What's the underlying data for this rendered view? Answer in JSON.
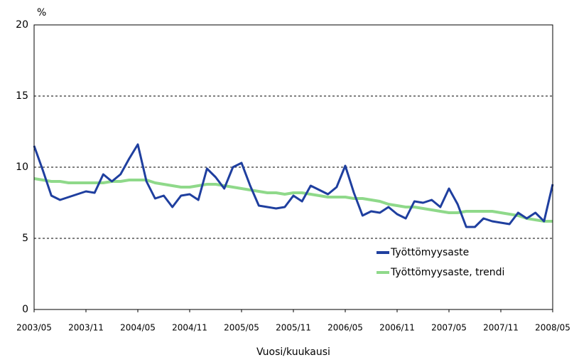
{
  "chart_data": {
    "type": "line",
    "y_unit": "%",
    "x_label": "Vuosi/kuukausi",
    "categories": [
      "2003/05",
      null,
      null,
      null,
      null,
      null,
      "2003/11",
      null,
      null,
      null,
      null,
      null,
      "2004/05",
      null,
      null,
      null,
      null,
      null,
      "2004/11",
      null,
      null,
      null,
      null,
      null,
      "2005/05",
      null,
      null,
      null,
      null,
      null,
      "2005/11",
      null,
      null,
      null,
      null,
      null,
      "2006/05",
      null,
      null,
      null,
      null,
      null,
      "2006/11",
      null,
      null,
      null,
      null,
      null,
      "2007/05",
      null,
      null,
      null,
      null,
      null,
      "2007/11",
      null,
      null,
      null,
      null,
      null,
      "2008/05"
    ],
    "series": [
      {
        "name": "Työttömyysaste",
        "color": "#1f3f9f",
        "values": [
          11.5,
          9.8,
          8.0,
          7.7,
          7.9,
          8.1,
          8.3,
          8.2,
          9.5,
          9.0,
          9.5,
          10.6,
          11.6,
          9.0,
          7.8,
          8.0,
          7.2,
          8.0,
          8.1,
          7.7,
          9.9,
          9.3,
          8.5,
          10.0,
          10.3,
          8.7,
          7.3,
          7.2,
          7.1,
          7.2,
          8.0,
          7.6,
          8.7,
          8.4,
          8.1,
          8.6,
          10.1,
          8.2,
          6.6,
          6.9,
          6.8,
          7.2,
          6.7,
          6.4,
          7.6,
          7.5,
          7.7,
          7.2,
          8.5,
          7.4,
          5.8,
          5.8,
          6.4,
          6.2,
          6.1,
          6.0,
          6.8,
          6.4,
          6.8,
          6.2,
          8.8
        ]
      },
      {
        "name": "Työttömyysaste, trendi",
        "color": "#8fd98a",
        "values": [
          9.2,
          9.1,
          9.0,
          9.0,
          8.9,
          8.9,
          8.9,
          8.9,
          8.9,
          9.0,
          9.0,
          9.1,
          9.1,
          9.1,
          8.9,
          8.8,
          8.7,
          8.6,
          8.6,
          8.7,
          8.8,
          8.8,
          8.7,
          8.6,
          8.5,
          8.4,
          8.3,
          8.2,
          8.2,
          8.1,
          8.2,
          8.2,
          8.1,
          8.0,
          7.9,
          7.9,
          7.9,
          7.8,
          7.8,
          7.7,
          7.6,
          7.4,
          7.3,
          7.2,
          7.2,
          7.1,
          7.0,
          6.9,
          6.8,
          6.8,
          6.9,
          6.9,
          6.9,
          6.9,
          6.8,
          6.7,
          6.6,
          6.4,
          6.3,
          6.2,
          6.2
        ]
      }
    ],
    "ylim": [
      0,
      20
    ],
    "yticks": [
      0,
      5,
      10,
      15,
      20
    ],
    "grid": true,
    "legend": "lower right"
  }
}
